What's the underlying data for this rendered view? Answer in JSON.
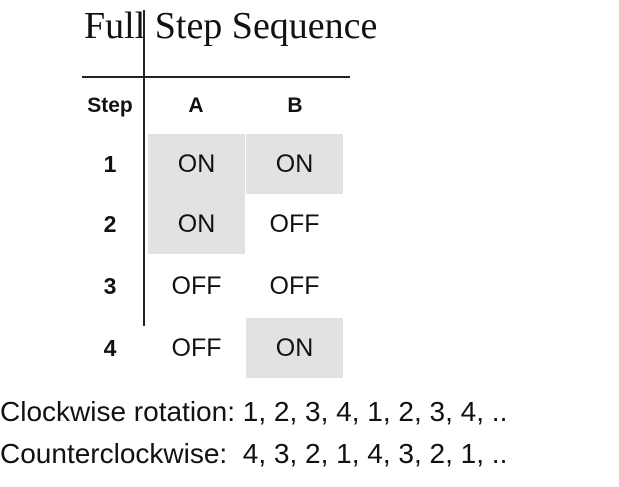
{
  "title": "Full Step Sequence",
  "table": {
    "headers": {
      "step": "Step",
      "a": "A",
      "b": "B"
    },
    "rows": [
      {
        "step": "1",
        "a": "ON",
        "b": "ON",
        "a_shaded": true,
        "b_shaded": true
      },
      {
        "step": "2",
        "a": "ON",
        "b": "OFF",
        "a_shaded": true,
        "b_shaded": false
      },
      {
        "step": "3",
        "a": "OFF",
        "b": "OFF",
        "a_shaded": false,
        "b_shaded": false
      },
      {
        "step": "4",
        "a": "OFF",
        "b": "ON",
        "a_shaded": false,
        "b_shaded": true
      }
    ],
    "shade_color": "#e2e2e2"
  },
  "sequences": {
    "clockwise": "Clockwise rotation: 1, 2, 3, 4, 1, 2, 3, 4, ..",
    "counterclockwise": "Counterclockwise:  4, 3, 2, 1, 4, 3, 2, 1, .."
  }
}
